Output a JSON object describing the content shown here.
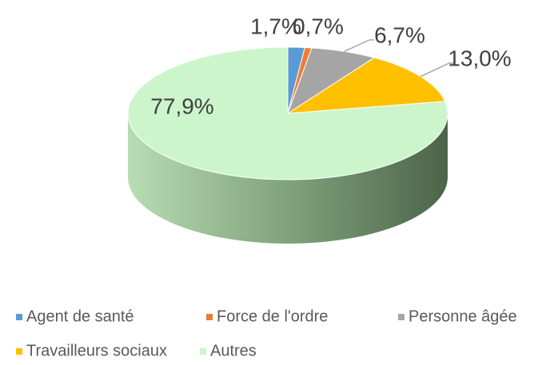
{
  "chart_data": {
    "type": "pie",
    "categories": [
      "Agent de santé",
      "Force de l'ordre",
      "Personne âgée",
      "Travailleurs sociaux",
      "Autres"
    ],
    "values": [
      1.7,
      0.7,
      6.7,
      13.0,
      77.9
    ],
    "value_labels": [
      "1,7%",
      "0,7%",
      "6,7%",
      "13,0%",
      "77,9%"
    ],
    "colors": [
      "#5b9bd5",
      "#ed7d31",
      "#a5a5a5",
      "#ffc000",
      "#ccf5cc"
    ]
  }
}
